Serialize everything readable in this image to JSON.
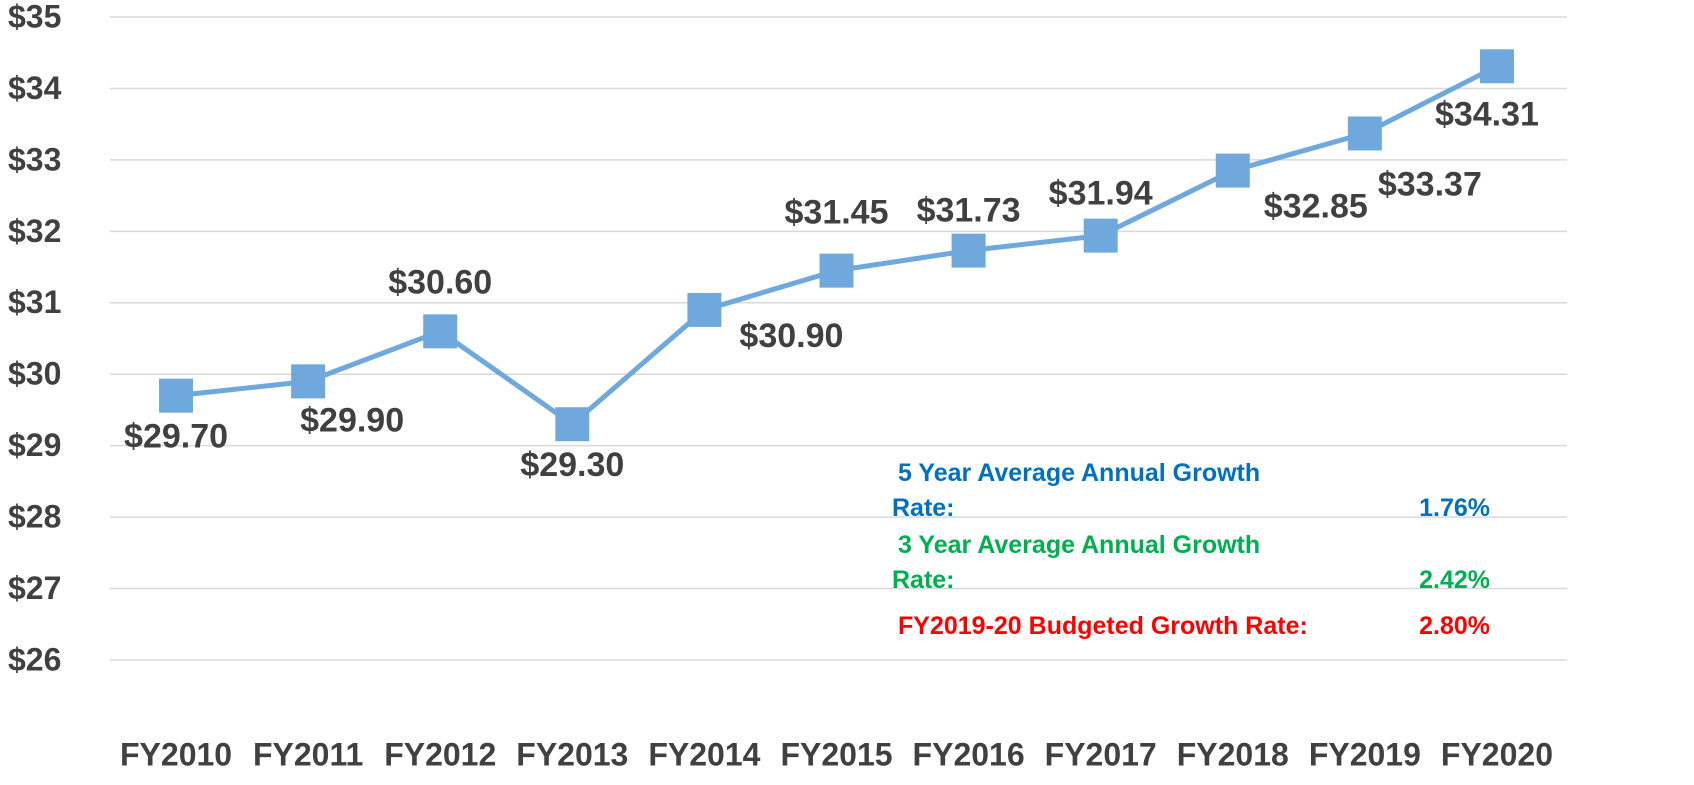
{
  "chart_data": {
    "type": "line",
    "categories": [
      "FY2010",
      "FY2011",
      "FY2012",
      "FY2013",
      "FY2014",
      "FY2015",
      "FY2016",
      "FY2017",
      "FY2018",
      "FY2019",
      "FY2020"
    ],
    "series": [
      {
        "color": "#6fa8dc",
        "values": [
          29.7,
          29.9,
          30.6,
          29.3,
          30.9,
          31.45,
          31.73,
          31.94,
          32.85,
          33.37,
          34.31
        ],
        "value_labels": [
          "$29.70",
          "$29.90",
          "$30.60",
          "$29.30",
          "$30.90",
          "$31.45",
          "$31.73",
          "$31.94",
          "$32.85",
          "$33.37",
          "$34.31"
        ]
      }
    ],
    "ylim": [
      26,
      35
    ],
    "yticks": [
      {
        "value": 26,
        "label": "$26"
      },
      {
        "value": 27,
        "label": "$27"
      },
      {
        "value": 28,
        "label": "$28"
      },
      {
        "value": 29,
        "label": "$29"
      },
      {
        "value": 30,
        "label": "$30"
      },
      {
        "value": 31,
        "label": "$31"
      },
      {
        "value": 32,
        "label": "$32"
      },
      {
        "value": 33,
        "label": "$33"
      },
      {
        "value": 34,
        "label": "$34"
      },
      {
        "value": 35,
        "label": "$35"
      }
    ],
    "grid": true,
    "annotations": [
      {
        "text": "5 Year Average Annual Growth Rate:",
        "value": "1.76%",
        "color": "#0070c0"
      },
      {
        "text": "3 Year Average Annual Growth Rate:",
        "value": "2.42%",
        "color": "#00b050"
      },
      {
        "text": "FY2019-20 Budgeted Growth Rate:",
        "value": "2.80%",
        "color": "#ff0000"
      }
    ]
  }
}
